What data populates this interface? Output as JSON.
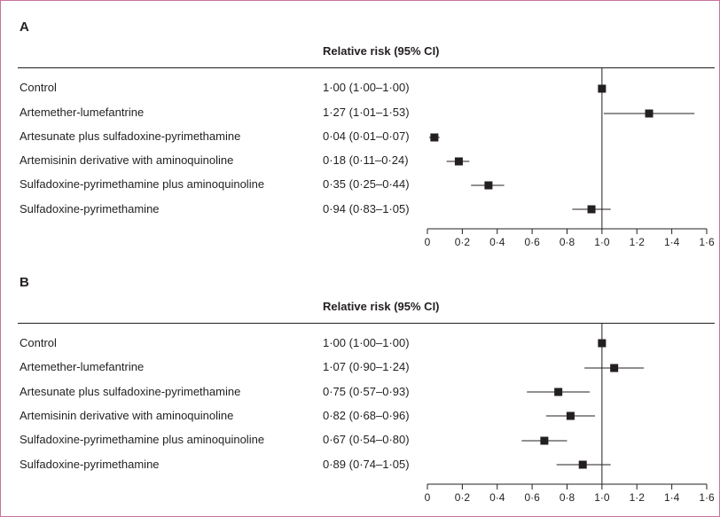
{
  "chart_data": [
    {
      "type": "forest",
      "panel_label": "A",
      "column_header": "Relative risk (95% CI)",
      "rows": [
        {
          "label": "Control",
          "ci_text": "1·00 (1·00–1·00)",
          "estimate": 1.0,
          "lower": 1.0,
          "upper": 1.0
        },
        {
          "label": "Artemether-lumefantrine",
          "ci_text": "1·27 (1·01–1·53)",
          "estimate": 1.27,
          "lower": 1.01,
          "upper": 1.53
        },
        {
          "label": "Artesunate plus sulfadoxine-pyrimethamine",
          "ci_text": "0·04 (0·01–0·07)",
          "estimate": 0.04,
          "lower": 0.01,
          "upper": 0.07
        },
        {
          "label": "Artemisinin derivative with aminoquinoline",
          "ci_text": "0·18 (0·11–0·24)",
          "estimate": 0.18,
          "lower": 0.11,
          "upper": 0.24
        },
        {
          "label": "Sulfadoxine-pyrimethamine plus aminoquinoline",
          "ci_text": "0·35 (0·25–0·44)",
          "estimate": 0.35,
          "lower": 0.25,
          "upper": 0.44
        },
        {
          "label": "Sulfadoxine-pyrimethamine",
          "ci_text": "0·94 (0·83–1·05)",
          "estimate": 0.94,
          "lower": 0.83,
          "upper": 1.05
        }
      ],
      "xlim": [
        0,
        1.6
      ],
      "reference_line": 1.0,
      "ticks": [
        0,
        0.2,
        0.4,
        0.6,
        0.8,
        1.0,
        1.2,
        1.4,
        1.6
      ],
      "tick_labels": [
        "0",
        "0·2",
        "0·4",
        "0·6",
        "0·8",
        "1·0",
        "1·2",
        "1·4",
        "1·6"
      ]
    },
    {
      "type": "forest",
      "panel_label": "B",
      "column_header": "Relative risk (95% CI)",
      "rows": [
        {
          "label": "Control",
          "ci_text": "1·00 (1·00–1·00)",
          "estimate": 1.0,
          "lower": 1.0,
          "upper": 1.0
        },
        {
          "label": "Artemether-lumefantrine",
          "ci_text": "1·07 (0·90–1·24)",
          "estimate": 1.07,
          "lower": 0.9,
          "upper": 1.24
        },
        {
          "label": "Artesunate plus sulfadoxine-pyrimethamine",
          "ci_text": "0·75 (0·57–0·93)",
          "estimate": 0.75,
          "lower": 0.57,
          "upper": 0.93
        },
        {
          "label": "Artemisinin derivative with aminoquinoline",
          "ci_text": "0·82 (0·68–0·96)",
          "estimate": 0.82,
          "lower": 0.68,
          "upper": 0.96
        },
        {
          "label": "Sulfadoxine-pyrimethamine plus aminoquinoline",
          "ci_text": "0·67 (0·54–0·80)",
          "estimate": 0.67,
          "lower": 0.54,
          "upper": 0.8
        },
        {
          "label": "Sulfadoxine-pyrimethamine",
          "ci_text": "0·89 (0·74–1·05)",
          "estimate": 0.89,
          "lower": 0.74,
          "upper": 1.05
        }
      ],
      "xlim": [
        0,
        1.6
      ],
      "reference_line": 1.0,
      "ticks": [
        0,
        0.2,
        0.4,
        0.6,
        0.8,
        1.0,
        1.2,
        1.4,
        1.6
      ],
      "tick_labels": [
        "0",
        "0·2",
        "0·4",
        "0·6",
        "0·8",
        "1·0",
        "1·2",
        "1·4",
        "1·6"
      ]
    }
  ]
}
